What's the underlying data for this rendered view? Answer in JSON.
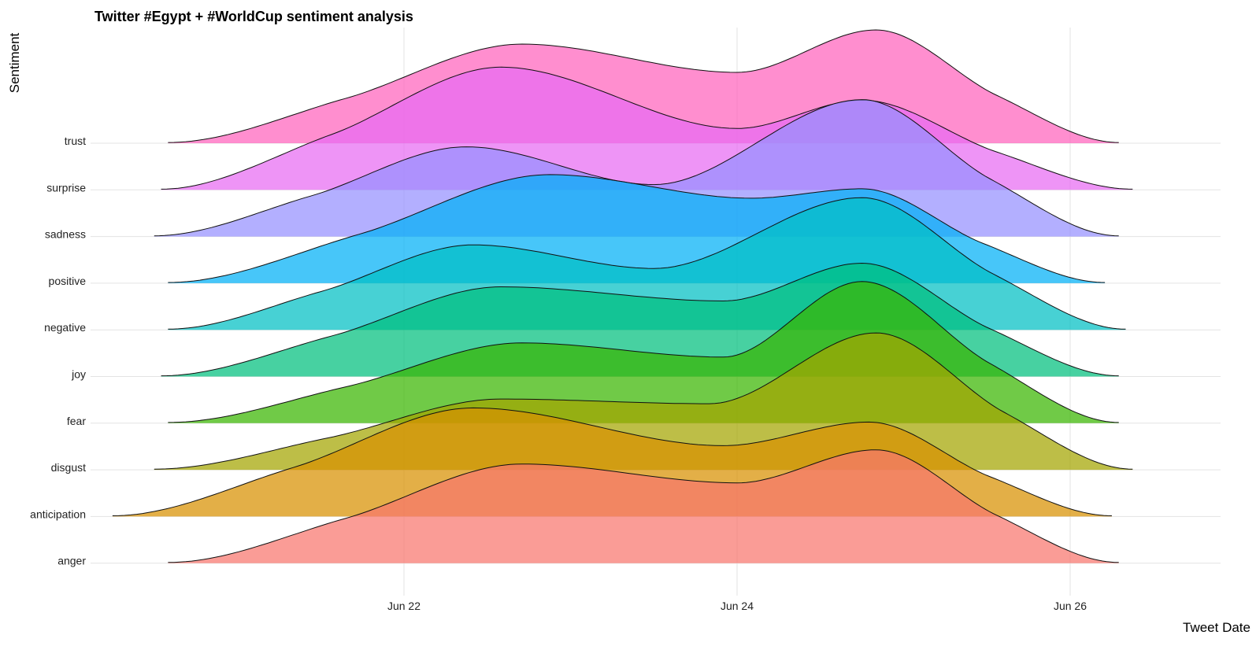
{
  "chart_data": {
    "type": "area",
    "subtype": "ridgeline-density",
    "title": "Twitter #Egypt + #WorldCup sentiment analysis",
    "xlabel": "Tweet Date",
    "ylabel": "Sentiment",
    "x_ticks": [
      "Jun 22",
      "Jun 24",
      "Jun 26"
    ],
    "x_tick_dates": [
      "2018-06-22",
      "2018-06-24",
      "2018-06-26"
    ],
    "xlim": [
      "2018-06-20",
      "2018-06-27"
    ],
    "grid": true,
    "legend": "none",
    "series": [
      {
        "name": "anger",
        "color": "#F8766D",
        "range": [
          "2018-06-20 14:00",
          "2018-06-26 07:00"
        ],
        "peaks": [
          {
            "x": "2018-06-22 17:00",
            "height": 2.1
          },
          {
            "x": "2018-06-24 20:00",
            "height": 2.4
          }
        ],
        "trough": {
          "x": "2018-06-24 00:00",
          "height": 1.7
        }
      },
      {
        "name": "anticipation",
        "color": "#D89000",
        "range": [
          "2018-06-20 06:00",
          "2018-06-26 06:00"
        ],
        "peaks": [
          {
            "x": "2018-06-22 10:00",
            "height": 2.3
          },
          {
            "x": "2018-06-24 19:00",
            "height": 2.0
          }
        ],
        "trough": {
          "x": "2018-06-23 22:00",
          "height": 1.5
        }
      },
      {
        "name": "disgust",
        "color": "#A3A500",
        "range": [
          "2018-06-20 12:00",
          "2018-06-26 09:00"
        ],
        "peaks": [
          {
            "x": "2018-06-22 14:00",
            "height": 1.5
          },
          {
            "x": "2018-06-24 20:00",
            "height": 2.9
          }
        ],
        "trough": {
          "x": "2018-06-23 20:00",
          "height": 1.4
        }
      },
      {
        "name": "fear",
        "color": "#39B600",
        "range": [
          "2018-06-20 14:00",
          "2018-06-26 07:00"
        ],
        "peaks": [
          {
            "x": "2018-06-22 17:00",
            "height": 1.7
          },
          {
            "x": "2018-06-24 18:00",
            "height": 3.0
          }
        ],
        "trough": {
          "x": "2018-06-23 22:00",
          "height": 1.4
        }
      },
      {
        "name": "joy",
        "color": "#00BF7D",
        "range": [
          "2018-06-20 13:00",
          "2018-06-26 07:00"
        ],
        "peaks": [
          {
            "x": "2018-06-22 14:00",
            "height": 1.9
          },
          {
            "x": "2018-06-24 18:00",
            "height": 2.4
          }
        ],
        "trough": {
          "x": "2018-06-23 22:00",
          "height": 1.6
        }
      },
      {
        "name": "negative",
        "color": "#00BFC4",
        "range": [
          "2018-06-20 14:00",
          "2018-06-26 08:00"
        ],
        "peaks": [
          {
            "x": "2018-06-22 10:00",
            "height": 1.8
          },
          {
            "x": "2018-06-24 18:00",
            "height": 2.8
          }
        ],
        "trough": {
          "x": "2018-06-23 12:00",
          "height": 1.3
        }
      },
      {
        "name": "positive",
        "color": "#00B0F6",
        "range": [
          "2018-06-20 14:00",
          "2018-06-26 05:00"
        ],
        "peaks": [
          {
            "x": "2018-06-22 21:00",
            "height": 2.3
          },
          {
            "x": "2018-06-24 18:00",
            "height": 2.0
          }
        ],
        "trough": {
          "x": "2018-06-24 02:00",
          "height": 1.8
        }
      },
      {
        "name": "sadness",
        "color": "#9590FF",
        "range": [
          "2018-06-20 12:00",
          "2018-06-26 07:00"
        ],
        "peaks": [
          {
            "x": "2018-06-22 09:00",
            "height": 1.9
          },
          {
            "x": "2018-06-24 18:00",
            "height": 2.9
          }
        ],
        "trough": {
          "x": "2018-06-23 12:00",
          "height": 1.1
        }
      },
      {
        "name": "surprise",
        "color": "#E76BF3",
        "range": [
          "2018-06-20 13:00",
          "2018-06-26 09:00"
        ],
        "peaks": [
          {
            "x": "2018-06-22 14:00",
            "height": 2.6
          },
          {
            "x": "2018-06-24 18:00",
            "height": 1.9
          }
        ],
        "trough": {
          "x": "2018-06-24 00:00",
          "height": 1.3
        }
      },
      {
        "name": "trust",
        "color": "#FF62BC",
        "range": [
          "2018-06-20 14:00",
          "2018-06-26 07:00"
        ],
        "peaks": [
          {
            "x": "2018-06-22 17:00",
            "height": 2.1
          },
          {
            "x": "2018-06-24 20:00",
            "height": 2.4
          }
        ],
        "trough": {
          "x": "2018-06-24 00:00",
          "height": 1.5
        }
      }
    ]
  }
}
